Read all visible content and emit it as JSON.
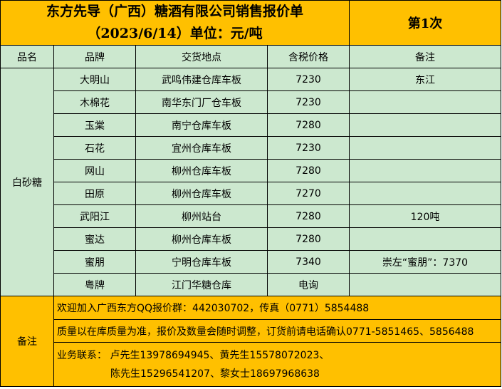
{
  "header": {
    "title_line1": "东方先导（广西）糖酒有限公司销售报价单",
    "title_line2": "（2023/6/14）单位：元/吨",
    "edition": "第1次"
  },
  "columns": [
    "品名",
    "品牌",
    "交货地点",
    "含税价格",
    "备注"
  ],
  "category": "白砂糖",
  "rows": [
    {
      "brand": "大明山",
      "location": "武鸣伟建仓库车板",
      "price": "7230",
      "note": "东江"
    },
    {
      "brand": "木棉花",
      "location": "南华东门厂仓车板",
      "price": "7230",
      "note": ""
    },
    {
      "brand": "玉棠",
      "location": "南宁仓库车板",
      "price": "7280",
      "note": ""
    },
    {
      "brand": "石花",
      "location": "宜州仓库车板",
      "price": "7230",
      "note": ""
    },
    {
      "brand": "网山",
      "location": "柳州仓库车板",
      "price": "7280",
      "note": ""
    },
    {
      "brand": "田原",
      "location": "柳州仓库车板",
      "price": "7270",
      "note": ""
    },
    {
      "brand": "武阳江",
      "location": "柳州站台",
      "price": "7280",
      "note": "120吨"
    },
    {
      "brand": "蜜达",
      "location": "柳州仓库车板",
      "price": "7280",
      "note": ""
    },
    {
      "brand": "蜜朋",
      "location": "宁明仓库车板",
      "price": "7340",
      "note": "崇左“蜜朋”：7370"
    },
    {
      "brand": "粤牌",
      "location": "江门华糖仓库",
      "price": "电询",
      "note": ""
    }
  ],
  "remarks": {
    "label": "备注",
    "line1": "欢迎加入广西东方QQ报价群：442030702，传真（0771）5854488",
    "line2": "质量以在库质量为准，报价及数量会随时调整，订货前请电话确认0771-5851465、5856488",
    "contact_a": "业务联系：  卢先生13978694945、黄先生15578072023、",
    "contact_b": "陈先生15296541207、黎女士18697968638"
  },
  "colors": {
    "header": "#FFC000",
    "body": "#CCE8CF"
  }
}
